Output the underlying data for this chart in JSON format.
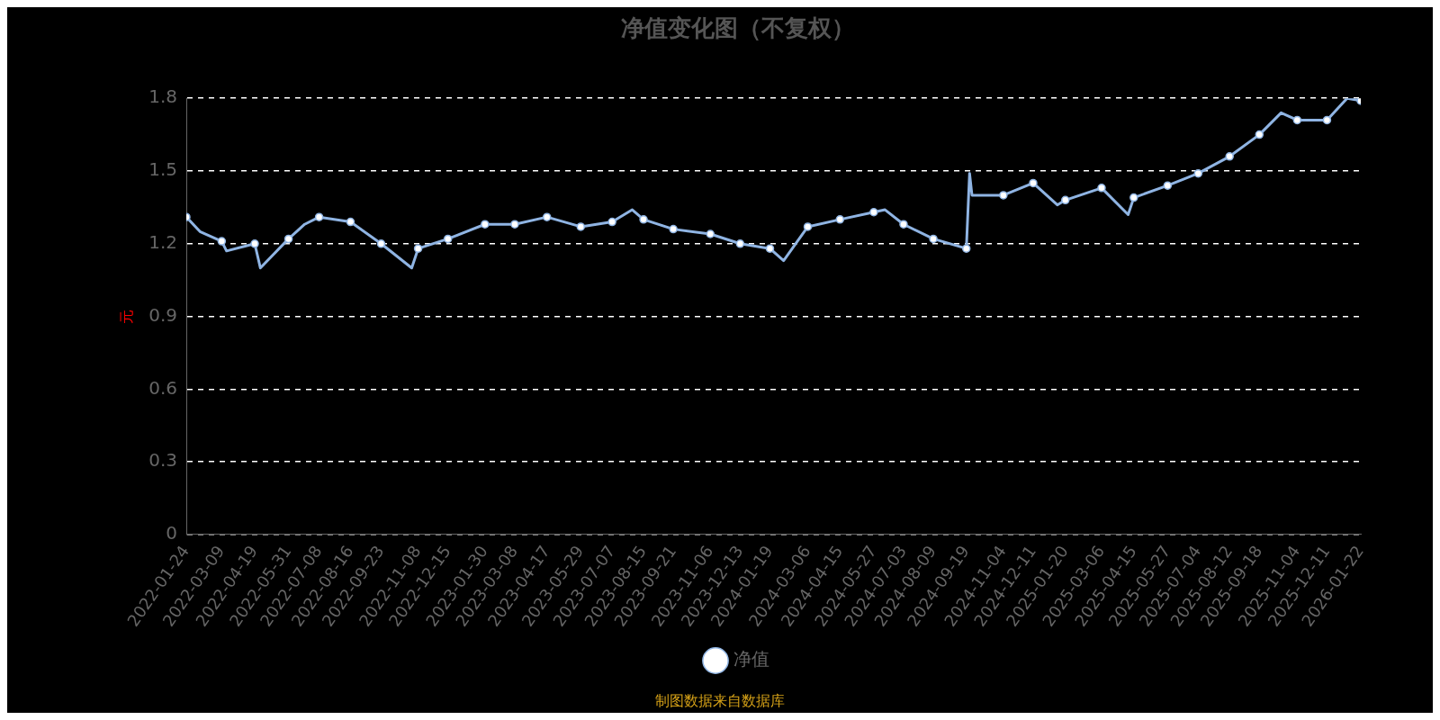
{
  "chart_data": {
    "type": "line",
    "title": "净值变化图（不复权）",
    "ylabel": "元",
    "annotations": [
      "制图数据来自数据库"
    ],
    "x": [
      "2022-01-24",
      "2022-02-10",
      "2022-03-09",
      "2022-03-15",
      "2022-04-19",
      "2022-04-26",
      "2022-05-31",
      "2022-06-20",
      "2022-07-08",
      "2022-08-16",
      "2022-09-23",
      "2022-10-31",
      "2022-11-08",
      "2022-12-15",
      "2023-01-30",
      "2023-03-08",
      "2023-04-17",
      "2023-05-29",
      "2023-07-07",
      "2023-08-01",
      "2023-08-15",
      "2023-09-21",
      "2023-11-06",
      "2023-12-13",
      "2024-01-19",
      "2024-02-05",
      "2024-03-06",
      "2024-04-15",
      "2024-05-27",
      "2024-06-10",
      "2024-07-03",
      "2024-08-09",
      "2024-09-19",
      "2024-09-23",
      "2024-09-26",
      "2024-11-04",
      "2024-12-11",
      "2025-01-10",
      "2025-01-20",
      "2025-03-06",
      "2025-04-08",
      "2025-04-15",
      "2025-05-27",
      "2025-07-04",
      "2025-08-12",
      "2025-09-18",
      "2025-10-15",
      "2025-11-04",
      "2025-12-11",
      "2026-01-05",
      "2026-01-22"
    ],
    "series": [
      {
        "name": "净值",
        "color": "#8fb4e3",
        "values": [
          1.31,
          1.25,
          1.21,
          1.17,
          1.2,
          1.1,
          1.22,
          1.28,
          1.31,
          1.29,
          1.2,
          1.1,
          1.18,
          1.22,
          1.28,
          1.28,
          1.31,
          1.27,
          1.29,
          1.34,
          1.3,
          1.26,
          1.24,
          1.2,
          1.18,
          1.13,
          1.27,
          1.3,
          1.33,
          1.34,
          1.28,
          1.22,
          1.18,
          1.49,
          1.4,
          1.4,
          1.45,
          1.36,
          1.38,
          1.43,
          1.32,
          1.39,
          1.44,
          1.49,
          1.56,
          1.65,
          1.74,
          1.71,
          1.71,
          1.8,
          1.79
        ]
      }
    ],
    "xlim": [
      "2022-01-24",
      "2026-01-22"
    ],
    "xticks": [
      "2022-01-24",
      "2022-03-09",
      "2022-04-19",
      "2022-05-31",
      "2022-07-08",
      "2022-08-16",
      "2022-09-23",
      "2022-11-08",
      "2022-12-15",
      "2023-01-30",
      "2023-03-08",
      "2023-04-17",
      "2023-05-29",
      "2023-07-07",
      "2023-08-15",
      "2023-09-21",
      "2023-11-06",
      "2023-12-13",
      "2024-01-19",
      "2024-03-06",
      "2024-04-15",
      "2024-05-27",
      "2024-07-03",
      "2024-08-09",
      "2024-09-19",
      "2024-11-04",
      "2024-12-11",
      "2025-01-20",
      "2025-03-06",
      "2025-04-15",
      "2025-05-27",
      "2025-07-04",
      "2025-08-12",
      "2025-09-18",
      "2025-11-04",
      "2025-12-11",
      "2026-01-22"
    ],
    "ylim": [
      0,
      1.8
    ],
    "yticks": [
      0,
      0.3,
      0.6,
      0.9,
      1.2,
      1.5,
      1.8
    ],
    "grid": "y",
    "legend": "bottom",
    "marker": "circle",
    "line_style": "solid"
  }
}
